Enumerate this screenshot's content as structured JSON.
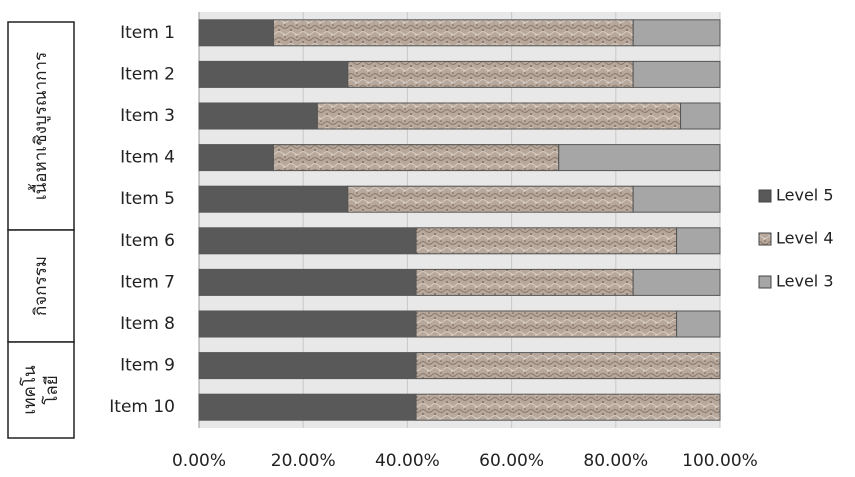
{
  "chart_data": {
    "type": "bar",
    "orientation": "horizontal",
    "stacked": true,
    "percent": true,
    "categories": [
      "Item 1",
      "Item 2",
      "Item 3",
      "Item 4",
      "Item 5",
      "Item 6",
      "Item 7",
      "Item 8",
      "Item 9",
      "Item 10"
    ],
    "series": [
      {
        "name": "Level 5",
        "values": [
          14.29,
          28.57,
          22.73,
          14.29,
          28.57,
          41.67,
          41.67,
          41.67,
          41.67,
          41.67
        ],
        "color": "#595959",
        "pattern": "solid"
      },
      {
        "name": "Level 4",
        "values": [
          69.05,
          54.76,
          69.7,
          54.76,
          54.76,
          50.0,
          41.66,
          50.0,
          58.33,
          58.33
        ],
        "color": "#b3a396",
        "pattern": "texture"
      },
      {
        "name": "Level 3",
        "values": [
          16.66,
          16.67,
          7.57,
          30.95,
          16.67,
          8.33,
          16.67,
          8.33,
          0,
          0
        ],
        "color": "#a6a6a6",
        "pattern": "solid"
      }
    ],
    "xlim": [
      0,
      100
    ],
    "x_ticks": [
      "0.00%",
      "20.00%",
      "40.00%",
      "60.00%",
      "80.00%",
      "100.00%"
    ],
    "title": "",
    "xlabel": "",
    "ylabel": "",
    "grid": true,
    "legend_position": "right",
    "groups": [
      {
        "label": "เนื้อหาเชิงบูรณาการ",
        "items": [
          1,
          2,
          3,
          4,
          5
        ]
      },
      {
        "label": "กิจกรรม",
        "items": [
          6,
          7,
          8
        ]
      },
      {
        "label_lines": [
          "เทคโน",
          "โลยี"
        ],
        "items": [
          9,
          10
        ]
      }
    ]
  }
}
